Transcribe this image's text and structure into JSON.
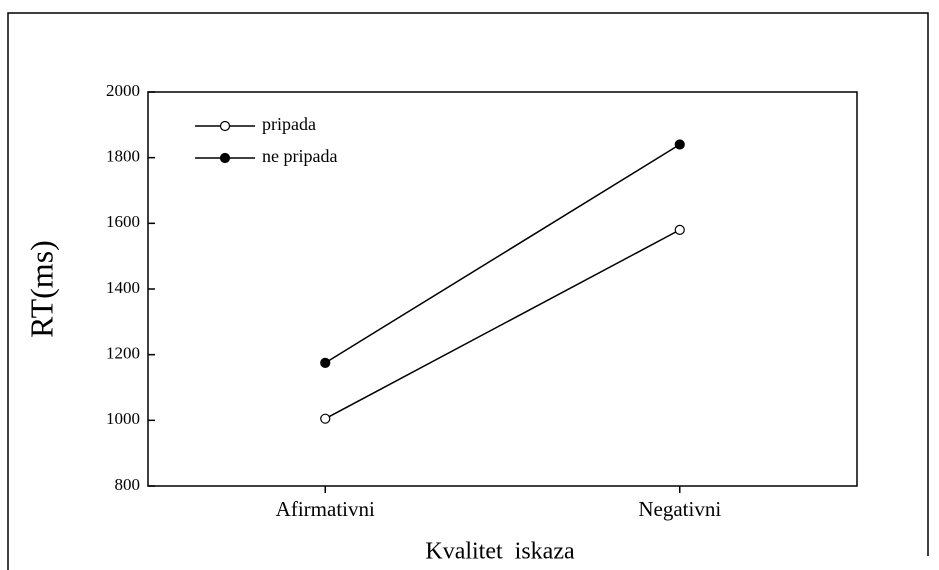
{
  "chart_data": {
    "type": "line",
    "categories": [
      "Afirmativni",
      "Negativni"
    ],
    "series": [
      {
        "name": "pripada",
        "color": "#000000",
        "marker_fill": "#ffffff",
        "values": [
          1005,
          1580
        ]
      },
      {
        "name": "ne pripada",
        "color": "#000000",
        "marker_fill": "#000000",
        "values": [
          1175,
          1840
        ]
      }
    ],
    "xlabel": "Kvalitet  iskaza",
    "ylabel": "RT(ms)",
    "ylim": [
      800,
      2000
    ],
    "yticks": [
      800,
      1000,
      1200,
      1400,
      1600,
      1800,
      2000
    ],
    "legend": "upper left",
    "grid": false
  }
}
